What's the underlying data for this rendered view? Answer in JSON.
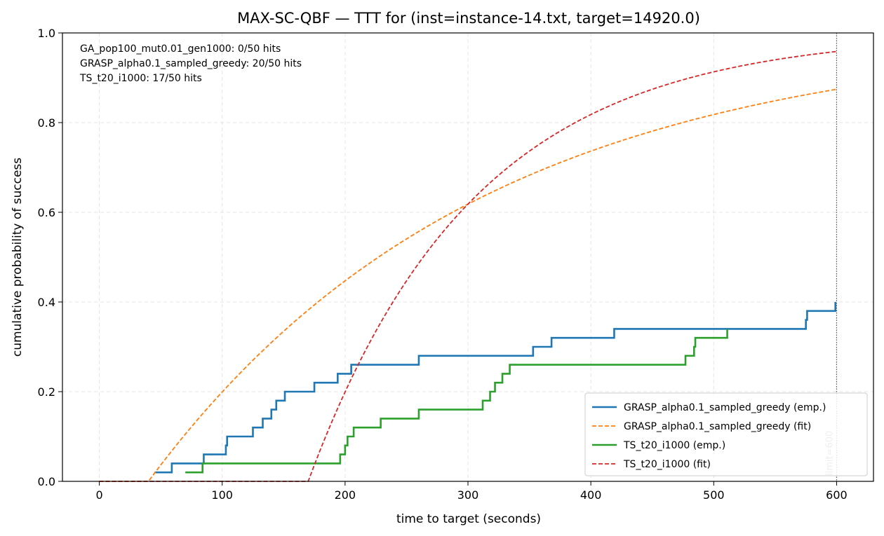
{
  "chart_data": {
    "type": "line",
    "title": "MAX-SC-QBF — TTT for (inst=instance-14.txt, target=14920.0)",
    "xlabel": "time to target (seconds)",
    "ylabel": "cumulative probability of success",
    "xlim": [
      -30,
      630
    ],
    "ylim": [
      0,
      1.0
    ],
    "xticks": [
      0,
      100,
      200,
      300,
      400,
      500,
      600
    ],
    "xtick_labels": [
      "0",
      "100",
      "200",
      "300",
      "400",
      "500",
      "600"
    ],
    "yticks": [
      0,
      0.2,
      0.4,
      0.6,
      0.8,
      1.0
    ],
    "ytick_labels": [
      "0.0",
      "0.2",
      "0.4",
      "0.6",
      "0.8",
      "1.0"
    ],
    "grid": true,
    "legend_position": "lower-right",
    "annotations": [
      "GA_pop100_mut0.01_gen1000: 0/50 hits",
      "GRASP_alpha0.1_sampled_greedy: 20/50 hits",
      "TS_t20_i1000: 17/50 hits"
    ],
    "limit_line": {
      "x": 600,
      "label": "limit=600"
    },
    "series": [
      {
        "name": "GRASP_alpha0.1_sampled_greedy (emp.)",
        "style": "solid",
        "color": "#1f77b4",
        "kind": "step",
        "points": [
          [
            45,
            0.02
          ],
          [
            59,
            0.02
          ],
          [
            59,
            0.04
          ],
          [
            85,
            0.04
          ],
          [
            85,
            0.06
          ],
          [
            103,
            0.06
          ],
          [
            103,
            0.08
          ],
          [
            104,
            0.08
          ],
          [
            104,
            0.1
          ],
          [
            125,
            0.1
          ],
          [
            125,
            0.12
          ],
          [
            133,
            0.12
          ],
          [
            133,
            0.14
          ],
          [
            140,
            0.14
          ],
          [
            140,
            0.16
          ],
          [
            144,
            0.16
          ],
          [
            144,
            0.18
          ],
          [
            151,
            0.18
          ],
          [
            151,
            0.2
          ],
          [
            175,
            0.2
          ],
          [
            175,
            0.22
          ],
          [
            194,
            0.22
          ],
          [
            194,
            0.24
          ],
          [
            205,
            0.24
          ],
          [
            205,
            0.26
          ],
          [
            260,
            0.26
          ],
          [
            260,
            0.28
          ],
          [
            353,
            0.28
          ],
          [
            353,
            0.3
          ],
          [
            368,
            0.3
          ],
          [
            368,
            0.32
          ],
          [
            419,
            0.32
          ],
          [
            419,
            0.34
          ],
          [
            575,
            0.34
          ],
          [
            575,
            0.36
          ],
          [
            576,
            0.36
          ],
          [
            576,
            0.38
          ],
          [
            599,
            0.38
          ],
          [
            599,
            0.4
          ]
        ]
      },
      {
        "name": "GRASP_alpha0.1_sampled_greedy (fit)",
        "style": "dashed",
        "color": "#ff7f0e",
        "kind": "exp_fit",
        "mu": 40,
        "lambda": 270,
        "x_range": [
          0,
          600
        ]
      },
      {
        "name": "TS_t20_i1000 (emp.)",
        "style": "solid",
        "color": "#2ca02c",
        "kind": "step",
        "points": [
          [
            70,
            0.02
          ],
          [
            84,
            0.02
          ],
          [
            84,
            0.04
          ],
          [
            196,
            0.04
          ],
          [
            196,
            0.06
          ],
          [
            200,
            0.06
          ],
          [
            200,
            0.08
          ],
          [
            202,
            0.08
          ],
          [
            202,
            0.1
          ],
          [
            207,
            0.1
          ],
          [
            207,
            0.12
          ],
          [
            229,
            0.12
          ],
          [
            229,
            0.14
          ],
          [
            260,
            0.14
          ],
          [
            260,
            0.16
          ],
          [
            312,
            0.16
          ],
          [
            312,
            0.18
          ],
          [
            318,
            0.18
          ],
          [
            318,
            0.2
          ],
          [
            322,
            0.2
          ],
          [
            322,
            0.22
          ],
          [
            328,
            0.22
          ],
          [
            328,
            0.24
          ],
          [
            334,
            0.24
          ],
          [
            334,
            0.26
          ],
          [
            477,
            0.26
          ],
          [
            477,
            0.28
          ],
          [
            484,
            0.28
          ],
          [
            484,
            0.3
          ],
          [
            485,
            0.3
          ],
          [
            485,
            0.32
          ],
          [
            511,
            0.32
          ],
          [
            511,
            0.34
          ]
        ]
      },
      {
        "name": "TS_t20_i1000 (fit)",
        "style": "dashed",
        "color": "#d62728",
        "kind": "exp_fit",
        "mu": 170,
        "lambda": 135,
        "x_range": [
          0,
          600
        ]
      }
    ]
  }
}
